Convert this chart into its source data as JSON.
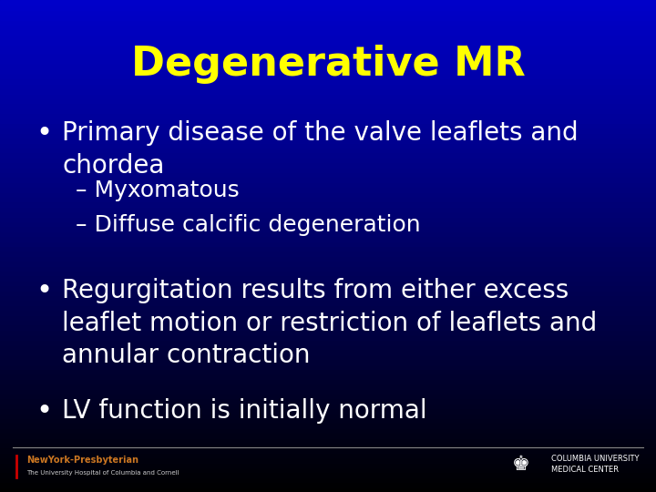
{
  "title": "Degenerative MR",
  "title_color": "#FFFF00",
  "title_fontsize": 32,
  "title_fontweight": "bold",
  "background_color": "#000080",
  "bullet_color": "#FFFFFF",
  "footer_left_name": "NewYork-Presbyterian",
  "footer_left_sub": "The University Hospital of Columbia and Cornell",
  "footer_right_name": "COLUMBIA UNIVERSITY\nMEDICAL CENTER",
  "footer_name_color": "#CC7722",
  "footer_sub_color": "#CCCCCC",
  "footer_right_color": "#FFFFFF",
  "bullets": [
    {
      "type": "bullet",
      "text": "Primary disease of the valve leaflets and\nchordea",
      "fontsize": 20
    },
    {
      "type": "sub_bullet",
      "text": "– Myxomatous",
      "fontsize": 18
    },
    {
      "type": "sub_bullet",
      "text": "– Diffuse calcific degeneration",
      "fontsize": 18
    },
    {
      "type": "bullet",
      "text": "Regurgitation results from either excess\nleaflet motion or restriction of leaflets and\nannular contraction",
      "fontsize": 20
    },
    {
      "type": "bullet",
      "text": "LV function is initially normal",
      "fontsize": 20
    }
  ]
}
